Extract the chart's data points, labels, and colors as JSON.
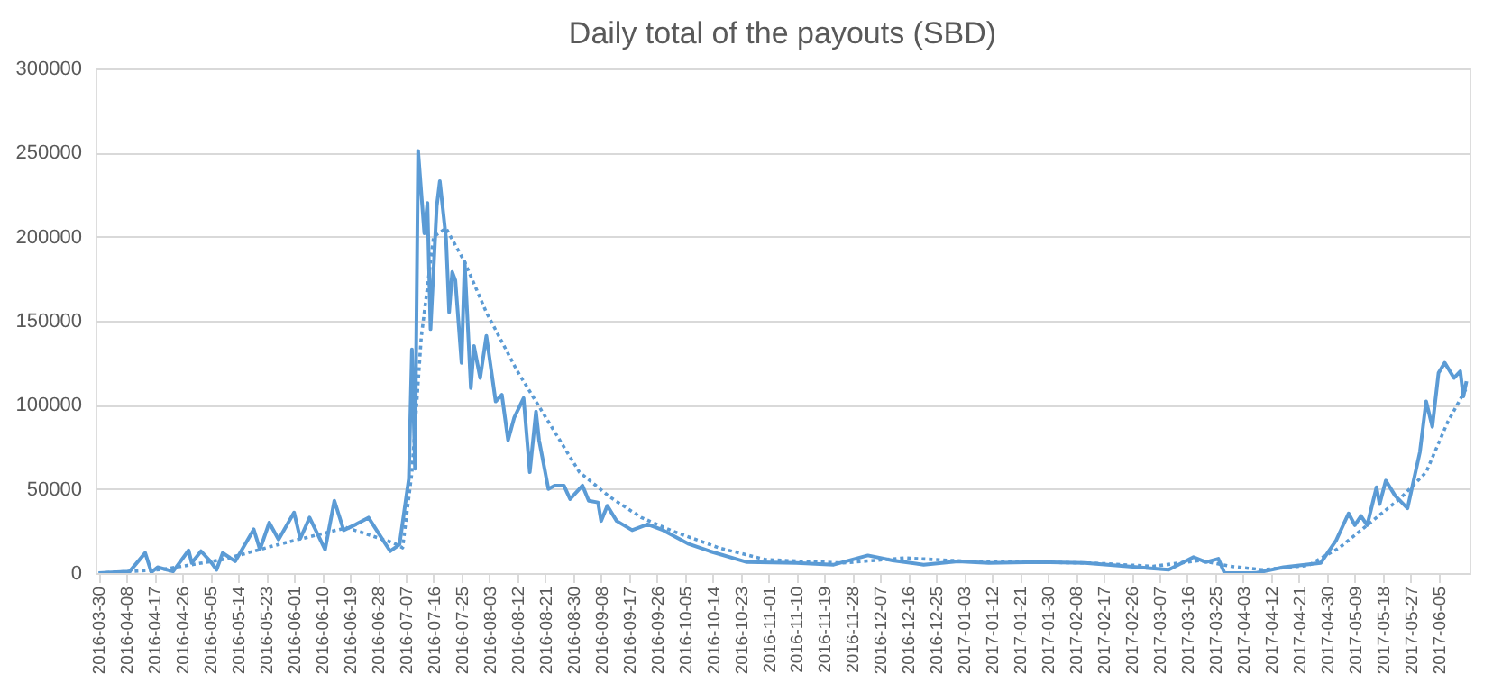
{
  "chart_data": {
    "type": "line",
    "title": "Daily total of the payouts (SBD)",
    "x": [
      "2016-03-30",
      "2016-04-09",
      "2016-04-14",
      "2016-04-16",
      "2016-04-18",
      "2016-04-23",
      "2016-04-28",
      "2016-04-29",
      "2016-05-02",
      "2016-05-05",
      "2016-05-07",
      "2016-05-09",
      "2016-05-13",
      "2016-05-19",
      "2016-05-21",
      "2016-05-24",
      "2016-05-27",
      "2016-06-01",
      "2016-06-03",
      "2016-06-06",
      "2016-06-11",
      "2016-06-14",
      "2016-06-17",
      "2016-06-21",
      "2016-06-25",
      "2016-06-29",
      "2016-07-02",
      "2016-07-05",
      "2016-07-08",
      "2016-07-09",
      "2016-07-10",
      "2016-07-11",
      "2016-07-13",
      "2016-07-14",
      "2016-07-15",
      "2016-07-17",
      "2016-07-18",
      "2016-07-20",
      "2016-07-21",
      "2016-07-22",
      "2016-07-23",
      "2016-07-25",
      "2016-07-26",
      "2016-07-28",
      "2016-07-29",
      "2016-07-31",
      "2016-08-02",
      "2016-08-05",
      "2016-08-07",
      "2016-08-09",
      "2016-08-11",
      "2016-08-14",
      "2016-08-16",
      "2016-08-18",
      "2016-08-19",
      "2016-08-22",
      "2016-08-24",
      "2016-08-27",
      "2016-08-29",
      "2016-09-02",
      "2016-09-04",
      "2016-09-07",
      "2016-09-08",
      "2016-09-10",
      "2016-09-13",
      "2016-09-18",
      "2016-09-23",
      "2016-09-28",
      "2016-10-06",
      "2016-10-13",
      "2016-10-25",
      "2016-11-10",
      "2016-11-22",
      "2016-12-03",
      "2016-12-11",
      "2016-12-21",
      "2017-01-01",
      "2017-01-11",
      "2017-01-27",
      "2017-02-11",
      "2017-02-21",
      "2017-03-10",
      "2017-03-18",
      "2017-03-22",
      "2017-03-26",
      "2017-03-28",
      "2017-04-07",
      "2017-04-16",
      "2017-04-28",
      "2017-05-03",
      "2017-05-07",
      "2017-05-09",
      "2017-05-11",
      "2017-05-13",
      "2017-05-16",
      "2017-05-17",
      "2017-05-19",
      "2017-05-22",
      "2017-05-26",
      "2017-05-30",
      "2017-06-01",
      "2017-06-03",
      "2017-06-05",
      "2017-06-07",
      "2017-06-10",
      "2017-06-12",
      "2017-06-13",
      "2017-06-14"
    ],
    "series": [
      {
        "color": "#5b9bd5",
        "line_style": "solid",
        "values": [
          0,
          1000,
          12000,
          500,
          3500,
          1000,
          13500,
          6000,
          13000,
          7000,
          2000,
          12000,
          7000,
          26000,
          14000,
          30000,
          20000,
          36000,
          20500,
          33000,
          14000,
          43000,
          25500,
          29000,
          33000,
          21500,
          13000,
          17000,
          56000,
          133000,
          62000,
          251000,
          202000,
          220000,
          145000,
          218000,
          233000,
          199000,
          155000,
          179000,
          174000,
          125000,
          185000,
          110000,
          135000,
          116000,
          141000,
          102000,
          106000,
          79000,
          92500,
          104000,
          60000,
          96000,
          79000,
          50000,
          52000,
          52000,
          44000,
          52000,
          43000,
          42000,
          31000,
          40000,
          31000,
          25500,
          29000,
          25500,
          17500,
          13000,
          6500,
          6000,
          5000,
          10500,
          7500,
          5000,
          7000,
          6000,
          6500,
          6000,
          4500,
          2000,
          9500,
          6500,
          8500,
          0,
          0,
          3500,
          6000,
          19500,
          35500,
          28500,
          34000,
          28500,
          51000,
          41000,
          55000,
          46000,
          38500,
          72000,
          102000,
          87000,
          119000,
          125000,
          116000,
          120000,
          105000,
          114000
        ]
      },
      {
        "color": "#5b9bd5",
        "line_style": "dotted",
        "x": [
          "2016-03-30",
          "2016-04-19",
          "2016-05-09",
          "2016-05-29",
          "2016-06-18",
          "2016-07-03",
          "2016-07-06",
          "2016-07-09",
          "2016-07-12",
          "2016-07-16",
          "2016-07-20",
          "2016-07-26",
          "2016-08-02",
          "2016-08-12",
          "2016-08-22",
          "2016-09-01",
          "2016-09-11",
          "2016-09-21",
          "2016-10-01",
          "2016-10-16",
          "2016-10-31",
          "2016-11-25",
          "2016-12-15",
          "2017-01-04",
          "2017-01-24",
          "2017-02-13",
          "2017-03-05",
          "2017-03-20",
          "2017-03-30",
          "2017-04-09",
          "2017-04-24",
          "2017-05-04",
          "2017-05-14",
          "2017-05-24",
          "2017-06-01",
          "2017-06-08",
          "2017-06-14"
        ],
        "values": [
          0,
          2000,
          8000,
          18000,
          27000,
          18000,
          15000,
          60000,
          140000,
          200000,
          205000,
          185000,
          155000,
          120000,
          90000,
          60000,
          45000,
          33000,
          25000,
          15000,
          8000,
          6000,
          9000,
          7000,
          6500,
          6000,
          4000,
          7500,
          4000,
          2000,
          4500,
          15000,
          30000,
          45000,
          60000,
          90000,
          110000
        ]
      }
    ],
    "xlim": [
      "2016-03-29",
      "2017-06-15"
    ],
    "xticks": [
      "2016-03-30",
      "2016-04-08",
      "2016-04-17",
      "2016-04-26",
      "2016-05-05",
      "2016-05-14",
      "2016-05-23",
      "2016-06-01",
      "2016-06-10",
      "2016-06-19",
      "2016-06-28",
      "2016-07-07",
      "2016-07-16",
      "2016-07-25",
      "2016-08-03",
      "2016-08-12",
      "2016-08-21",
      "2016-08-30",
      "2016-09-08",
      "2016-09-17",
      "2016-09-26",
      "2016-10-05",
      "2016-10-14",
      "2016-10-23",
      "2016-11-01",
      "2016-11-10",
      "2016-11-19",
      "2016-11-28",
      "2016-12-07",
      "2016-12-16",
      "2016-12-25",
      "2017-01-03",
      "2017-01-12",
      "2017-01-21",
      "2017-01-30",
      "2017-02-08",
      "2017-02-17",
      "2017-02-26",
      "2017-03-07",
      "2017-03-16",
      "2017-03-25",
      "2017-04-03",
      "2017-04-12",
      "2017-04-21",
      "2017-04-30",
      "2017-05-09",
      "2017-05-18",
      "2017-05-27",
      "2017-06-05"
    ],
    "ylim": [
      0,
      300000
    ],
    "yticks": [
      0,
      50000,
      100000,
      150000,
      200000,
      250000,
      300000
    ],
    "grid": "y"
  }
}
